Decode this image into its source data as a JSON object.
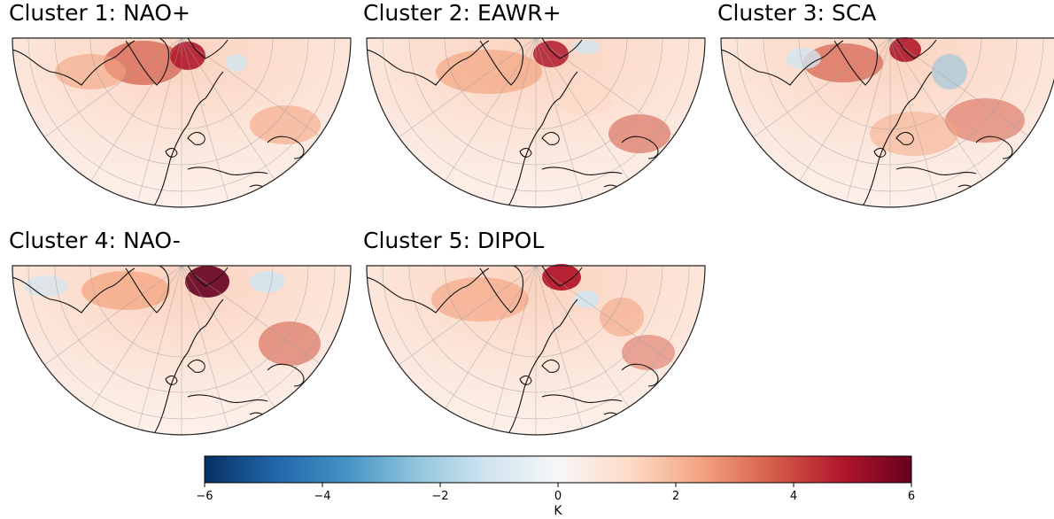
{
  "panels": [
    {
      "title": "Cluster 1: NAO+"
    },
    {
      "title": "Cluster 2: EAWR+"
    },
    {
      "title": "Cluster 3: SCA"
    },
    {
      "title": "Cluster 4: NAO-"
    },
    {
      "title": "Cluster 5: DIPOL"
    }
  ],
  "colorbar": {
    "min": -6,
    "max": 6,
    "ticks": [
      "-6",
      "-4",
      "-2",
      "0",
      "2",
      "4",
      "6"
    ],
    "label": "K",
    "colors": [
      "#053061",
      "#2166ac",
      "#4393c3",
      "#92c5de",
      "#d1e5f0",
      "#f7f7f7",
      "#fddbc7",
      "#f4a582",
      "#d6604d",
      "#b2182b",
      "#67001f"
    ]
  }
}
